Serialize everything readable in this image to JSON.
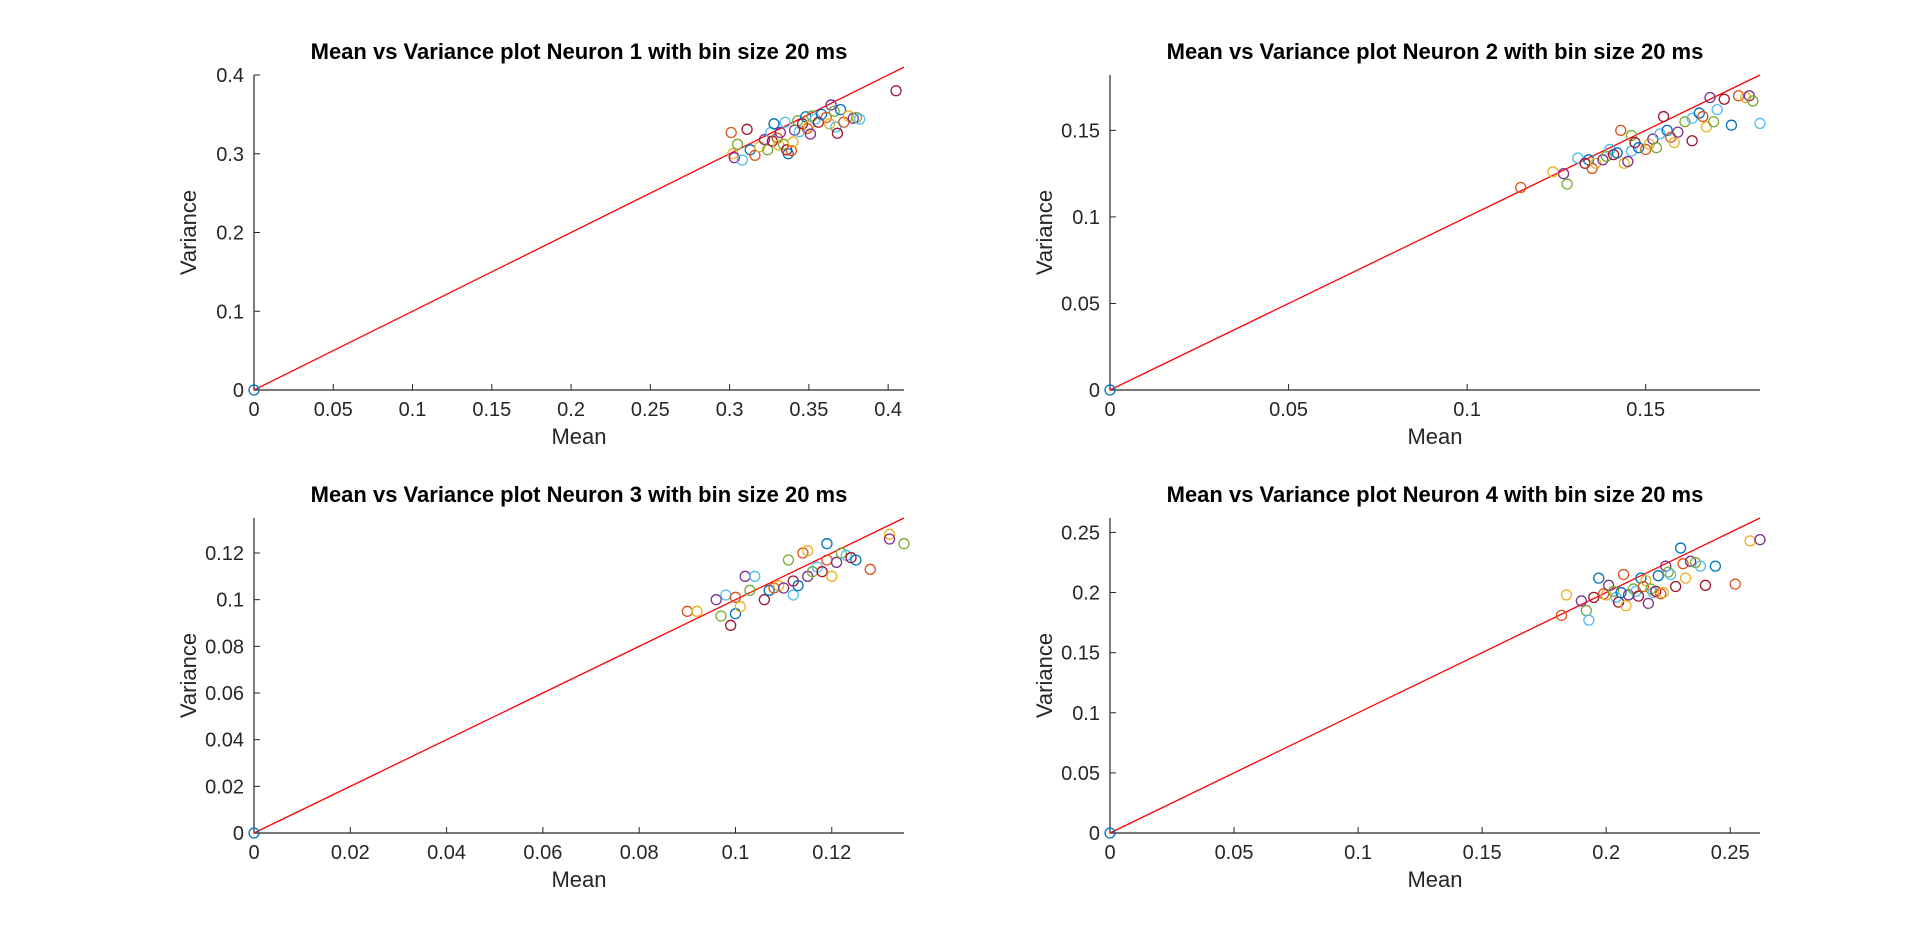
{
  "palette": [
    "#0072BD",
    "#D95319",
    "#EDB120",
    "#7E2F8E",
    "#77AC30",
    "#4DBEEE",
    "#A2142F"
  ],
  "line_color": "#FF0000",
  "chart_data": [
    {
      "type": "scatter",
      "title": "Mean vs Variance plot Neuron 1 with  bin size 20 ms",
      "xlabel": "Mean",
      "ylabel": "Variance",
      "xlim": [
        0,
        0.41
      ],
      "ylim": [
        0,
        0.4
      ],
      "xticks": [
        0,
        0.05,
        0.1,
        0.15,
        0.2,
        0.25,
        0.3,
        0.35,
        0.4
      ],
      "xtick_labels": [
        "0",
        "0.05",
        "0.1",
        "0.15",
        "0.2",
        "0.25",
        "0.3",
        "0.35",
        "0.4"
      ],
      "yticks": [
        0,
        0.1,
        0.2,
        0.3,
        0.4
      ],
      "ytick_labels": [
        "0",
        "0.1",
        "0.2",
        "0.3",
        "0.4"
      ],
      "reference_line": {
        "x": [
          0,
          0.41
        ],
        "y": [
          0,
          0.41
        ]
      },
      "points": [
        [
          0,
          0
        ],
        [
          0.301,
          0.327
        ],
        [
          0.302,
          0.3
        ],
        [
          0.303,
          0.295
        ],
        [
          0.305,
          0.312
        ],
        [
          0.308,
          0.292
        ],
        [
          0.311,
          0.331
        ],
        [
          0.313,
          0.305
        ],
        [
          0.316,
          0.298
        ],
        [
          0.319,
          0.309
        ],
        [
          0.322,
          0.318
        ],
        [
          0.324,
          0.305
        ],
        [
          0.326,
          0.327
        ],
        [
          0.327,
          0.316
        ],
        [
          0.328,
          0.338
        ],
        [
          0.33,
          0.32
        ],
        [
          0.331,
          0.311
        ],
        [
          0.332,
          0.327
        ],
        [
          0.334,
          0.312
        ],
        [
          0.335,
          0.34
        ],
        [
          0.336,
          0.305
        ],
        [
          0.337,
          0.3
        ],
        [
          0.339,
          0.304
        ],
        [
          0.34,
          0.315
        ],
        [
          0.341,
          0.33
        ],
        [
          0.343,
          0.342
        ],
        [
          0.344,
          0.328
        ],
        [
          0.346,
          0.338
        ],
        [
          0.348,
          0.347
        ],
        [
          0.349,
          0.332
        ],
        [
          0.35,
          0.335
        ],
        [
          0.351,
          0.325
        ],
        [
          0.352,
          0.348
        ],
        [
          0.354,
          0.344
        ],
        [
          0.356,
          0.34
        ],
        [
          0.358,
          0.35
        ],
        [
          0.361,
          0.346
        ],
        [
          0.363,
          0.338
        ],
        [
          0.364,
          0.362
        ],
        [
          0.366,
          0.354
        ],
        [
          0.367,
          0.334
        ],
        [
          0.368,
          0.326
        ],
        [
          0.37,
          0.356
        ],
        [
          0.372,
          0.34
        ],
        [
          0.375,
          0.348
        ],
        [
          0.378,
          0.345
        ],
        [
          0.38,
          0.346
        ],
        [
          0.382,
          0.344
        ],
        [
          0.405,
          0.38
        ]
      ]
    },
    {
      "type": "scatter",
      "title": "Mean vs Variance plot Neuron 2 with  bin size 20 ms",
      "xlabel": "Mean",
      "ylabel": "Variance",
      "xlim": [
        0,
        0.182
      ],
      "ylim": [
        0,
        0.182
      ],
      "xticks": [
        0,
        0.05,
        0.1,
        0.15
      ],
      "xtick_labels": [
        "0",
        "0.05",
        "0.1",
        "0.15"
      ],
      "yticks": [
        0,
        0.05,
        0.1,
        0.15
      ],
      "ytick_labels": [
        "0",
        "0.05",
        "0.1",
        "0.15"
      ],
      "reference_line": {
        "x": [
          0,
          0.182
        ],
        "y": [
          0,
          0.182
        ]
      },
      "points": [
        [
          0,
          0
        ],
        [
          0.115,
          0.117
        ],
        [
          0.124,
          0.126
        ],
        [
          0.127,
          0.125
        ],
        [
          0.128,
          0.119
        ],
        [
          0.131,
          0.134
        ],
        [
          0.133,
          0.131
        ],
        [
          0.134,
          0.133
        ],
        [
          0.135,
          0.128
        ],
        [
          0.136,
          0.131
        ],
        [
          0.138,
          0.133
        ],
        [
          0.139,
          0.135
        ],
        [
          0.14,
          0.139
        ],
        [
          0.141,
          0.136
        ],
        [
          0.142,
          0.137
        ],
        [
          0.143,
          0.15
        ],
        [
          0.144,
          0.131
        ],
        [
          0.145,
          0.132
        ],
        [
          0.146,
          0.147
        ],
        [
          0.146,
          0.138
        ],
        [
          0.147,
          0.143
        ],
        [
          0.148,
          0.14
        ],
        [
          0.15,
          0.139
        ],
        [
          0.151,
          0.142
        ],
        [
          0.152,
          0.145
        ],
        [
          0.153,
          0.14
        ],
        [
          0.154,
          0.148
        ],
        [
          0.155,
          0.158
        ],
        [
          0.156,
          0.15
        ],
        [
          0.157,
          0.146
        ],
        [
          0.158,
          0.143
        ],
        [
          0.159,
          0.149
        ],
        [
          0.161,
          0.155
        ],
        [
          0.163,
          0.157
        ],
        [
          0.163,
          0.144
        ],
        [
          0.165,
          0.16
        ],
        [
          0.166,
          0.158
        ],
        [
          0.167,
          0.152
        ],
        [
          0.168,
          0.169
        ],
        [
          0.169,
          0.155
        ],
        [
          0.17,
          0.162
        ],
        [
          0.172,
          0.168
        ],
        [
          0.174,
          0.153
        ],
        [
          0.176,
          0.17
        ],
        [
          0.178,
          0.169
        ],
        [
          0.179,
          0.17
        ],
        [
          0.18,
          0.167
        ],
        [
          0.182,
          0.154
        ]
      ]
    },
    {
      "type": "scatter",
      "title": "Mean vs Variance plot Neuron 3 with  bin size 20 ms",
      "xlabel": "Mean",
      "ylabel": "Variance",
      "xlim": [
        0,
        0.135
      ],
      "ylim": [
        0,
        0.135
      ],
      "xticks": [
        0,
        0.02,
        0.04,
        0.06,
        0.08,
        0.1,
        0.12
      ],
      "xtick_labels": [
        "0",
        "0.02",
        "0.04",
        "0.06",
        "0.08",
        "0.1",
        "0.12"
      ],
      "yticks": [
        0,
        0.02,
        0.04,
        0.06,
        0.08,
        0.1,
        0.12
      ],
      "ytick_labels": [
        "0",
        "0.02",
        "0.04",
        "0.06",
        "0.08",
        "0.1",
        "0.12"
      ],
      "reference_line": {
        "x": [
          0,
          0.135
        ],
        "y": [
          0,
          0.135
        ]
      },
      "points": [
        [
          0,
          0
        ],
        [
          0.09,
          0.095
        ],
        [
          0.092,
          0.095
        ],
        [
          0.096,
          0.1
        ],
        [
          0.097,
          0.093
        ],
        [
          0.098,
          0.102
        ],
        [
          0.099,
          0.089
        ],
        [
          0.1,
          0.094
        ],
        [
          0.1,
          0.101
        ],
        [
          0.101,
          0.097
        ],
        [
          0.102,
          0.11
        ],
        [
          0.103,
          0.104
        ],
        [
          0.104,
          0.11
        ],
        [
          0.106,
          0.1
        ],
        [
          0.107,
          0.104
        ],
        [
          0.108,
          0.105
        ],
        [
          0.109,
          0.106
        ],
        [
          0.11,
          0.105
        ],
        [
          0.111,
          0.117
        ],
        [
          0.112,
          0.102
        ],
        [
          0.112,
          0.108
        ],
        [
          0.113,
          0.106
        ],
        [
          0.114,
          0.12
        ],
        [
          0.115,
          0.121
        ],
        [
          0.115,
          0.11
        ],
        [
          0.116,
          0.112
        ],
        [
          0.117,
          0.114
        ],
        [
          0.118,
          0.112
        ],
        [
          0.119,
          0.124
        ],
        [
          0.119,
          0.117
        ],
        [
          0.12,
          0.11
        ],
        [
          0.121,
          0.116
        ],
        [
          0.122,
          0.12
        ],
        [
          0.123,
          0.119
        ],
        [
          0.124,
          0.118
        ],
        [
          0.125,
          0.117
        ],
        [
          0.128,
          0.113
        ],
        [
          0.132,
          0.128
        ],
        [
          0.132,
          0.126
        ],
        [
          0.135,
          0.124
        ]
      ]
    },
    {
      "type": "scatter",
      "title": "Mean vs Variance plot Neuron 4 with  bin size 20 ms",
      "xlabel": "Mean",
      "ylabel": "Variance",
      "xlim": [
        0,
        0.262
      ],
      "ylim": [
        0,
        0.262
      ],
      "xticks": [
        0,
        0.05,
        0.1,
        0.15,
        0.2,
        0.25
      ],
      "xtick_labels": [
        "0",
        "0.05",
        "0.1",
        "0.15",
        "0.2",
        "0.25"
      ],
      "yticks": [
        0,
        0.05,
        0.1,
        0.15,
        0.2,
        0.25
      ],
      "ytick_labels": [
        "0",
        "0.05",
        "0.1",
        "0.15",
        "0.2",
        "0.25"
      ],
      "reference_line": {
        "x": [
          0,
          0.262
        ],
        "y": [
          0,
          0.262
        ]
      },
      "points": [
        [
          0,
          0
        ],
        [
          0.182,
          0.181
        ],
        [
          0.184,
          0.198
        ],
        [
          0.19,
          0.193
        ],
        [
          0.192,
          0.185
        ],
        [
          0.193,
          0.177
        ],
        [
          0.195,
          0.196
        ],
        [
          0.197,
          0.212
        ],
        [
          0.199,
          0.199
        ],
        [
          0.2,
          0.198
        ],
        [
          0.201,
          0.206
        ],
        [
          0.203,
          0.201
        ],
        [
          0.204,
          0.196
        ],
        [
          0.205,
          0.192
        ],
        [
          0.206,
          0.2
        ],
        [
          0.207,
          0.215
        ],
        [
          0.208,
          0.189
        ],
        [
          0.209,
          0.198
        ],
        [
          0.211,
          0.203
        ],
        [
          0.212,
          0.201
        ],
        [
          0.213,
          0.197
        ],
        [
          0.214,
          0.212
        ],
        [
          0.215,
          0.205
        ],
        [
          0.216,
          0.21
        ],
        [
          0.217,
          0.191
        ],
        [
          0.218,
          0.203
        ],
        [
          0.219,
          0.2
        ],
        [
          0.22,
          0.201
        ],
        [
          0.221,
          0.214
        ],
        [
          0.222,
          0.199
        ],
        [
          0.223,
          0.2
        ],
        [
          0.224,
          0.222
        ],
        [
          0.225,
          0.217
        ],
        [
          0.226,
          0.215
        ],
        [
          0.228,
          0.205
        ],
        [
          0.23,
          0.237
        ],
        [
          0.231,
          0.224
        ],
        [
          0.232,
          0.212
        ],
        [
          0.234,
          0.226
        ],
        [
          0.236,
          0.225
        ],
        [
          0.238,
          0.222
        ],
        [
          0.24,
          0.206
        ],
        [
          0.244,
          0.222
        ],
        [
          0.252,
          0.207
        ],
        [
          0.258,
          0.243
        ],
        [
          0.262,
          0.244
        ]
      ]
    }
  ]
}
